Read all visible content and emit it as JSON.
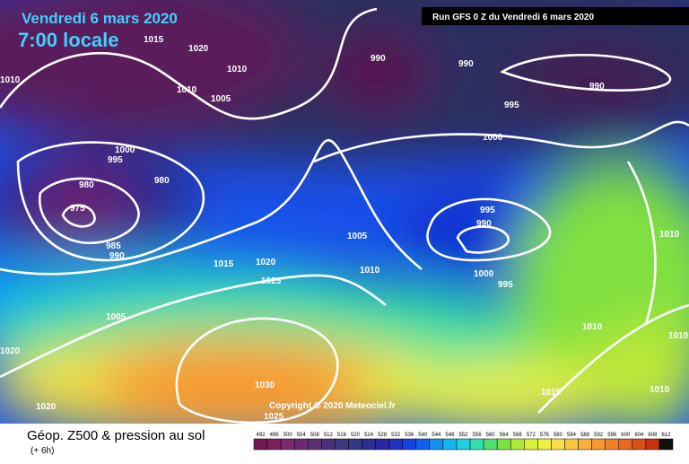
{
  "header": {
    "date": "Vendredi 6 mars 2020",
    "time": "7:00 locale",
    "run": "Run GFS 0 Z du Vendredi 6 mars 2020"
  },
  "isobar_labels": [
    "1015",
    "1020",
    "1010",
    "1010",
    "1005",
    "1010",
    "990",
    "990",
    "990",
    "995",
    "1000",
    "1000",
    "995",
    "980",
    "980",
    "975",
    "985",
    "990",
    "995",
    "990",
    "1005",
    "1010",
    "1015",
    "1020",
    "1025",
    "1010",
    "1000",
    "995",
    "1005",
    "1020",
    "1010",
    "1010",
    "1030",
    "1015",
    "1010",
    "1020",
    "1025"
  ],
  "copyright": "Copyright © 2020 Meteociel.fr",
  "footer": {
    "title": "Géop. Z500 & pression au sol",
    "subtitle": "(+ 6h)"
  },
  "legend": {
    "values": [
      492,
      496,
      500,
      504,
      508,
      512,
      516,
      520,
      524,
      528,
      532,
      536,
      540,
      544,
      548,
      552,
      556,
      560,
      564,
      568,
      572,
      576,
      580,
      584,
      588,
      592,
      596,
      600,
      604,
      608,
      612
    ],
    "colors": [
      "#6e1a50",
      "#7a2060",
      "#7e2a70",
      "#6a2a70",
      "#5a3070",
      "#4a3078",
      "#3e3880",
      "#303888",
      "#2a3090",
      "#2828a0",
      "#2030c0",
      "#1840e0",
      "#1060f0",
      "#1090f0",
      "#10b8f0",
      "#20d0e0",
      "#30e0b0",
      "#50e070",
      "#80e040",
      "#b0e838",
      "#d8f038",
      "#f0f040",
      "#f8e048",
      "#f8c840",
      "#f8b038",
      "#f89830",
      "#f08028",
      "#e86820",
      "#d85018",
      "#c83010",
      "#101010"
    ]
  }
}
